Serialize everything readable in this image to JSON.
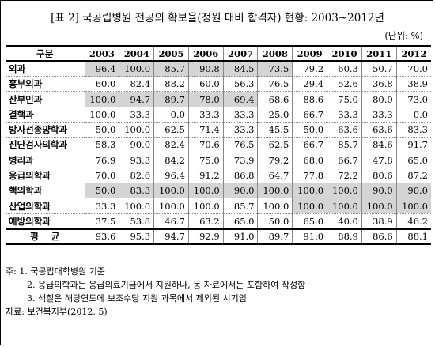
{
  "title": "[표 2] 국공립병원 전공의 확보율(정원 대비 합격자) 현황: 2003~2012년",
  "unit": "(단위: %)",
  "table": {
    "header_label": "구분",
    "years": [
      "2003",
      "2004",
      "2005",
      "2006",
      "2007",
      "2008",
      "2009",
      "2010",
      "2011",
      "2012"
    ],
    "rows": [
      {
        "name": "외과",
        "values": [
          "96.4",
          "100.0",
          "85.7",
          "90.8",
          "84.5",
          "73.5",
          "79.2",
          "60.3",
          "50.7",
          "70.0"
        ],
        "shaded": [
          1,
          1,
          1,
          1,
          1,
          1,
          0,
          0,
          0,
          0
        ]
      },
      {
        "name": "흉부외과",
        "values": [
          "60.0",
          "82.4",
          "88.2",
          "60.0",
          "56.3",
          "76.5",
          "29.4",
          "52.6",
          "36.8",
          "38.9"
        ],
        "shaded": [
          0,
          0,
          0,
          0,
          0,
          0,
          0,
          0,
          0,
          0
        ]
      },
      {
        "name": "산부인과",
        "values": [
          "100.0",
          "94.7",
          "89.7",
          "78.0",
          "69.4",
          "68.6",
          "88.6",
          "75.0",
          "80.0",
          "73.0"
        ],
        "shaded": [
          1,
          1,
          1,
          1,
          1,
          0,
          0,
          0,
          0,
          0
        ]
      },
      {
        "name": "결핵과",
        "values": [
          "100.0",
          "33.3",
          "0.0",
          "33.3",
          "33.3",
          "25.0",
          "66.7",
          "33.3",
          "33.3",
          "0.0"
        ],
        "shaded": [
          0,
          0,
          0,
          0,
          0,
          0,
          0,
          0,
          0,
          0
        ]
      },
      {
        "name": "방사선종양학과",
        "values": [
          "50.0",
          "100.0",
          "62.5",
          "71.4",
          "33.3",
          "45.5",
          "50.0",
          "63.6",
          "63.6",
          "83.3"
        ],
        "shaded": [
          0,
          0,
          0,
          0,
          0,
          0,
          0,
          0,
          0,
          0
        ]
      },
      {
        "name": "진단검사의학과",
        "values": [
          "58.3",
          "90.0",
          "82.4",
          "70.6",
          "76.5",
          "62.5",
          "66.7",
          "85.7",
          "84.6",
          "91.7"
        ],
        "shaded": [
          0,
          0,
          0,
          0,
          0,
          0,
          0,
          0,
          0,
          0
        ]
      },
      {
        "name": "병리과",
        "values": [
          "76.9",
          "93.3",
          "84.2",
          "75.0",
          "73.9",
          "79.2",
          "68.0",
          "66.7",
          "47.8",
          "65.0"
        ],
        "shaded": [
          0,
          0,
          0,
          0,
          0,
          0,
          0,
          0,
          0,
          0
        ]
      },
      {
        "name": "응급의학과",
        "values": [
          "70.0",
          "82.6",
          "96.4",
          "91.2",
          "86.8",
          "64.7",
          "77.8",
          "72.2",
          "80.6",
          "87.2"
        ],
        "shaded": [
          0,
          0,
          0,
          0,
          0,
          0,
          0,
          0,
          0,
          0
        ]
      },
      {
        "name": "핵의학과",
        "values": [
          "50.0",
          "83.3",
          "100.0",
          "100.0",
          "90.0",
          "100.0",
          "100.0",
          "100.0",
          "90.0",
          "90.0"
        ],
        "shaded": [
          1,
          1,
          1,
          1,
          1,
          1,
          1,
          1,
          1,
          1
        ]
      },
      {
        "name": "산업의학과",
        "values": [
          "33.3",
          "100.0",
          "100.0",
          "100.0",
          "85.7",
          "100.0",
          "100.0",
          "100.0",
          "100.0",
          "100.0"
        ],
        "shaded": [
          0,
          0,
          0,
          0,
          0,
          0,
          1,
          1,
          1,
          1
        ]
      },
      {
        "name": "예방의학과",
        "values": [
          "37.5",
          "53.8",
          "46.7",
          "63.2",
          "65.0",
          "50.0",
          "65.0",
          "40.0",
          "38.9",
          "46.2"
        ],
        "shaded": [
          0,
          0,
          0,
          0,
          0,
          0,
          0,
          0,
          0,
          0
        ]
      }
    ],
    "average": {
      "name": "평    균",
      "values": [
        "93.6",
        "95.3",
        "94.7",
        "92.9",
        "91.0",
        "89.7",
        "91.0",
        "88.9",
        "86.6",
        "88.1"
      ]
    }
  },
  "notes": [
    "주: 1. 국공립대학병원 기준",
    "2. 응급의학과는 응급의료기금에서 지원하나, 동 자료에서는 포함하여 작성함",
    "3. 색칠은 해당연도에 보조수당 지원 과목에서 제외된 시기임"
  ],
  "source": "자료: 보건복지부(2012. 5)"
}
